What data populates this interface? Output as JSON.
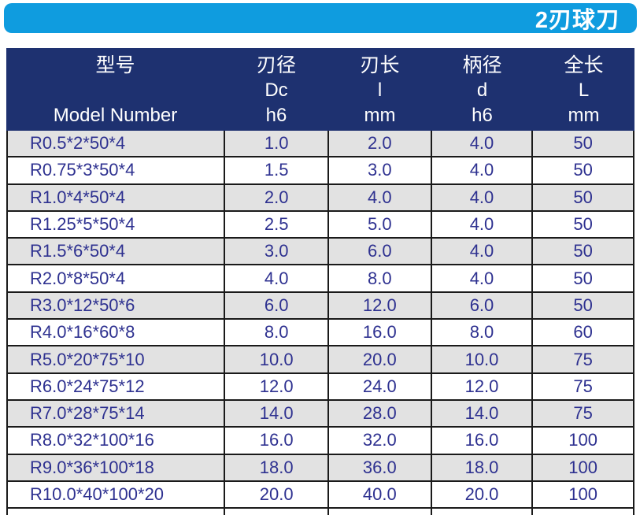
{
  "banner": {
    "title": "2刃球刀"
  },
  "colors": {
    "banner_bg": "#0f9cdf",
    "header_bg": "#1e3170",
    "row_alt_bg": "#e2e2e2",
    "data_text": "#2e3190",
    "border": "#1a1a1a"
  },
  "table": {
    "columns": [
      {
        "cn": "型号",
        "symbol": "",
        "unit": "Model Number"
      },
      {
        "cn": "刃径",
        "symbol": "Dc",
        "unit": "h6"
      },
      {
        "cn": "刃长",
        "symbol": "l",
        "unit": "mm"
      },
      {
        "cn": "柄径",
        "symbol": "d",
        "unit": "h6"
      },
      {
        "cn": "全长",
        "symbol": "L",
        "unit": "mm"
      }
    ],
    "rows": [
      [
        "R0.5*2*50*4",
        "1.0",
        "2.0",
        "4.0",
        "50"
      ],
      [
        "R0.75*3*50*4",
        "1.5",
        "3.0",
        "4.0",
        "50"
      ],
      [
        "R1.0*4*50*4",
        "2.0",
        "4.0",
        "4.0",
        "50"
      ],
      [
        "R1.25*5*50*4",
        "2.5",
        "5.0",
        "4.0",
        "50"
      ],
      [
        "R1.5*6*50*4",
        "3.0",
        "6.0",
        "4.0",
        "50"
      ],
      [
        "R2.0*8*50*4",
        "4.0",
        "8.0",
        "4.0",
        "50"
      ],
      [
        "R3.0*12*50*6",
        "6.0",
        "12.0",
        "6.0",
        "50"
      ],
      [
        "R4.0*16*60*8",
        "8.0",
        "16.0",
        "8.0",
        "60"
      ],
      [
        "R5.0*20*75*10",
        "10.0",
        "20.0",
        "10.0",
        "75"
      ],
      [
        "R6.0*24*75*12",
        "12.0",
        "24.0",
        "12.0",
        "75"
      ],
      [
        "R7.0*28*75*14",
        "14.0",
        "28.0",
        "14.0",
        "75"
      ],
      [
        "R8.0*32*100*16",
        "16.0",
        "32.0",
        "16.0",
        "100"
      ],
      [
        "R9.0*36*100*18",
        "18.0",
        "36.0",
        "18.0",
        "100"
      ],
      [
        "R10.0*40*100*20",
        "20.0",
        "40.0",
        "20.0",
        "100"
      ]
    ]
  }
}
